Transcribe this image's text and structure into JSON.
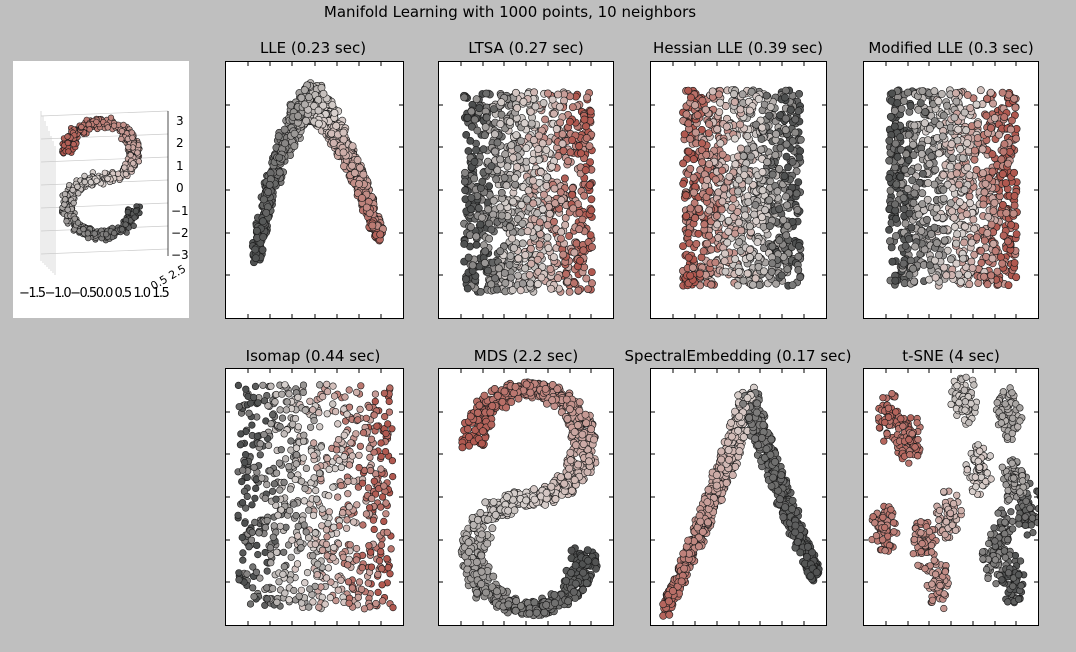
{
  "figure": {
    "suptitle": "Manifold Learning with 1000 points, 10 neighbors"
  },
  "colors": {
    "background": "#bfbfbf",
    "red_end": "#b0584f",
    "mid": "#d9d2cf",
    "grey_end": "#4e5050"
  },
  "chart_data": [
    {
      "type": "scatter",
      "panel": "3d",
      "title": "",
      "description_shape": "S-curve",
      "zticks": [
        "3",
        "2",
        "1",
        "0",
        "−1",
        "−2",
        "−3"
      ],
      "xticks_label": "−1.5−1.0−0.50.0 0.5 1.0 1.5",
      "yticks_label": "0.5 2.5",
      "zlim": [
        -3,
        3
      ]
    },
    {
      "type": "scatter",
      "title": "LLE (0.23 sec)",
      "shape": "arch"
    },
    {
      "type": "scatter",
      "title": "LTSA (0.27 sec)",
      "shape": "rect",
      "gradient": "left-grey-right-red"
    },
    {
      "type": "scatter",
      "title": "Hessian LLE (0.39 sec)",
      "shape": "rect",
      "gradient": "left-red-right-grey"
    },
    {
      "type": "scatter",
      "title": "Modified LLE (0.3 sec)",
      "shape": "rect",
      "gradient": "left-grey-right-red"
    },
    {
      "type": "scatter",
      "title": "Isomap (0.44 sec)",
      "shape": "rect_sparse",
      "gradient": "left-grey-right-red"
    },
    {
      "type": "scatter",
      "title": "MDS (2.2 sec)",
      "shape": "S"
    },
    {
      "type": "scatter",
      "title": "SpectralEmbedding (0.17 sec)",
      "shape": "inverted-V"
    },
    {
      "type": "scatter",
      "title": "t-SNE (4 sec)",
      "shape": "clusters"
    }
  ]
}
